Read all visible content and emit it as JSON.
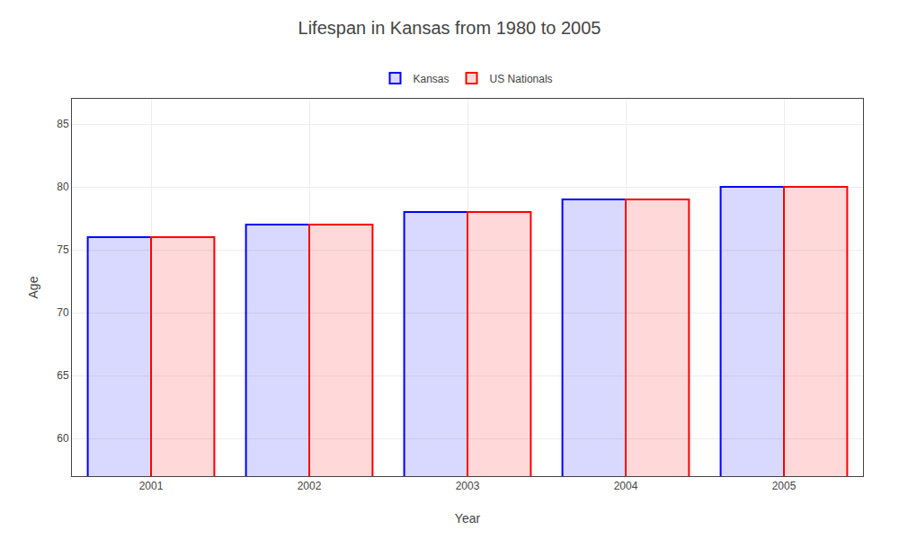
{
  "chart_data": {
    "type": "bar",
    "title": "Lifespan in Kansas from 1980 to 2005",
    "xlabel": "Year",
    "ylabel": "Age",
    "categories": [
      "2001",
      "2002",
      "2003",
      "2004",
      "2005"
    ],
    "series": [
      {
        "name": "Kansas",
        "color": "#0000ff",
        "values": [
          76,
          77,
          78,
          79,
          80
        ]
      },
      {
        "name": "US Nationals",
        "color": "#ff0000",
        "values": [
          76,
          77,
          78,
          79,
          80
        ]
      }
    ],
    "ylim": [
      57,
      87
    ],
    "yticks": [
      60,
      65,
      70,
      75,
      80,
      85
    ],
    "grid": true,
    "legend": "top"
  }
}
